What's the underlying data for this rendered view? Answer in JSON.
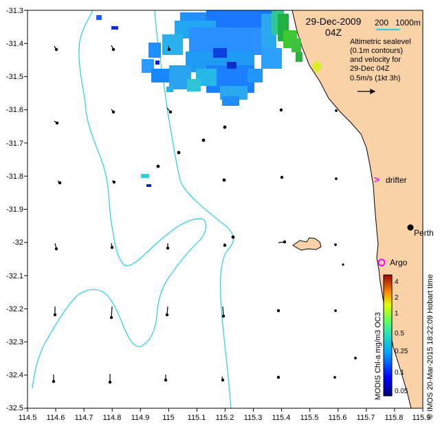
{
  "map": {
    "date_title": "29-Dec-2009",
    "time_title": "04Z",
    "depth_labels": [
      "200",
      "1000m"
    ],
    "legend_lines": [
      "Altimetric sealevel",
      "(0.1m contours)",
      "and velocity for",
      "29-Dec 04Z",
      "0.5m/s (1kt 3h)"
    ],
    "lon_ticks": [
      "114.5",
      "114.6",
      "114.7",
      "114.8",
      "114.9",
      "115",
      "115.1",
      "115.2",
      "115.3",
      "115.4",
      "115.5",
      "115.6",
      "115.7",
      "115.8",
      "115.9"
    ],
    "lat_ticks": [
      "-31.3",
      "-31.4",
      "-31.5",
      "-31.6",
      "-31.7",
      "-31.8",
      "-31.9",
      "-32",
      "-32.1",
      "-32.2",
      "-32.3",
      "-32.4",
      "-32.5"
    ],
    "places": [
      {
        "label": "drifter",
        "marker": ">"
      },
      {
        "label": "Perth",
        "marker": "dot"
      },
      {
        "label": "Argo",
        "marker": "circle"
      }
    ],
    "colorbar": {
      "title": "MODIS Chl-a mg/m3 OC3",
      "ticks": [
        "4",
        "2",
        "1",
        "0.5",
        "0.25",
        "0.1",
        "0.05"
      ]
    },
    "credit": "© IMOS 20-Mar-2015 18:22:09 Hobart time",
    "colors": {
      "land": "#fad2a8",
      "isobath": "#22d0e0",
      "marker": "#ff00ff"
    }
  }
}
